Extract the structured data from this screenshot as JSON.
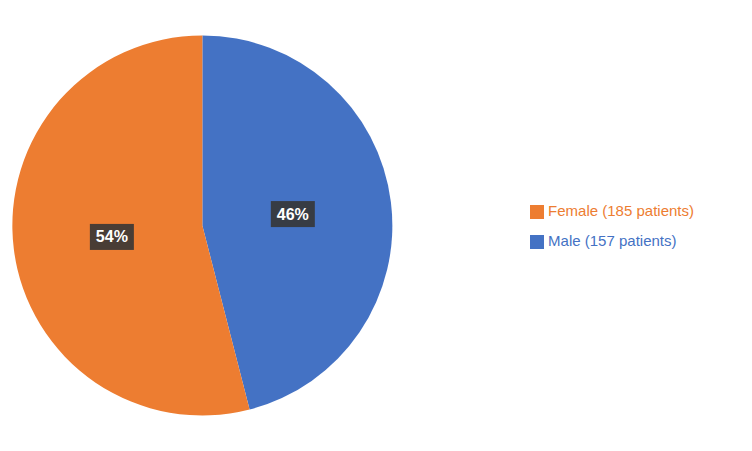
{
  "chart_data": {
    "type": "pie",
    "categories": [
      "Male (157 patients)",
      "Female (185 patients)"
    ],
    "values": [
      46,
      54
    ],
    "value_labels": [
      "46%",
      "54%"
    ],
    "colors": [
      "#4472C4",
      "#ED7D31"
    ],
    "data_labels": true,
    "legend": "right"
  }
}
